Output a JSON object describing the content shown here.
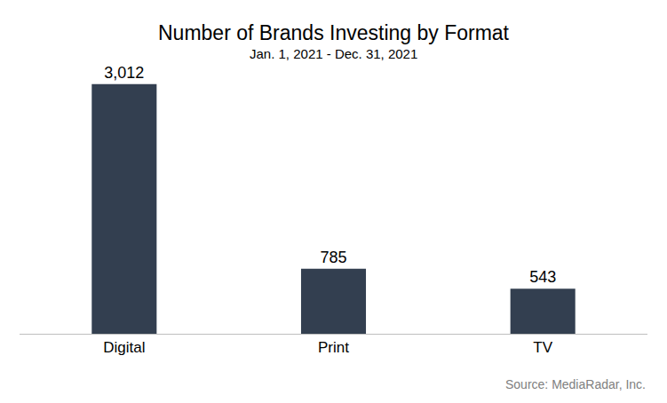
{
  "chart_data": {
    "type": "bar",
    "title": "Number of Brands Investing by Format",
    "subtitle": "Jan. 1, 2021 - Dec. 31, 2021",
    "source": "Source: MediaRadar, Inc.",
    "categories": [
      "Digital",
      "Print",
      "TV"
    ],
    "values": [
      3012,
      785,
      543
    ],
    "value_labels": [
      "3,012",
      "785",
      "543"
    ],
    "color": "#333f50",
    "data_labels": true,
    "grid": false,
    "tick_labels": "x"
  }
}
